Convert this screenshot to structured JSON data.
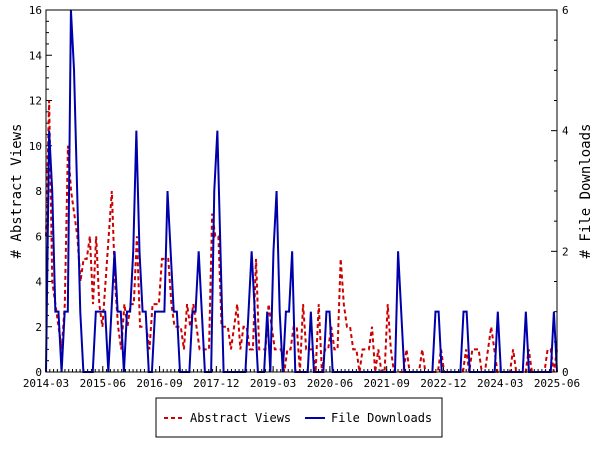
{
  "chart_data": {
    "type": "line",
    "x_tick_labels": [
      "2014-03",
      "2015-06",
      "2016-09",
      "2017-12",
      "2019-03",
      "2020-06",
      "2021-09",
      "2022-12",
      "2024-03",
      "2025-06"
    ],
    "x_range": [
      "2014-03",
      "2025-06"
    ],
    "ylabel": "# Abstract Views",
    "y2label": "# File Downloads",
    "ylim": [
      0,
      16
    ],
    "y_ticks": [
      0,
      2,
      4,
      6,
      8,
      10,
      12,
      14,
      16
    ],
    "y2lim": [
      0,
      6
    ],
    "y2_ticks": [
      0,
      2,
      4,
      6
    ],
    "legend_placement": "bottom-center",
    "series": [
      {
        "name": "Abstract Views",
        "axis": "left",
        "color": "#cc0000",
        "style": "dashed",
        "values": [
          6,
          12,
          4,
          3,
          2,
          1,
          3,
          10,
          8,
          7,
          6,
          4,
          5,
          5,
          6,
          3,
          6,
          3,
          2,
          4,
          6,
          8,
          4,
          2,
          1,
          3,
          2,
          3,
          3,
          6,
          2,
          2,
          2,
          1,
          3,
          3,
          3,
          5,
          5,
          5,
          3,
          2,
          2,
          2,
          1,
          3,
          2,
          3,
          2,
          1,
          1,
          1,
          1,
          7,
          6,
          6,
          2,
          2,
          2,
          1,
          2,
          3,
          1,
          2,
          2,
          1,
          1,
          5,
          1,
          1,
          1,
          3,
          2,
          1,
          1,
          1,
          0,
          1,
          1,
          2,
          2,
          0,
          3,
          1,
          1,
          1,
          0,
          3,
          0,
          1,
          1,
          2,
          1,
          1,
          5,
          3,
          2,
          2,
          1,
          1,
          0,
          1,
          1,
          1,
          2,
          0,
          1,
          0,
          0,
          3,
          1,
          0,
          0,
          0,
          0,
          1,
          0,
          0,
          0,
          0,
          1,
          0,
          0,
          0,
          0,
          0,
          1,
          0,
          0,
          0,
          0,
          0,
          0,
          0,
          1,
          0,
          1,
          1,
          1,
          0,
          0,
          1,
          2,
          1,
          0,
          0,
          0,
          0,
          0,
          1,
          0,
          0,
          0,
          0,
          1,
          0,
          0,
          0,
          0,
          0,
          1,
          1,
          0,
          1
        ],
        "ylim": [
          0,
          16
        ]
      },
      {
        "name": "File Downloads",
        "axis": "right",
        "color": "#0000aa",
        "style": "solid",
        "values": [
          0,
          4,
          3,
          1,
          1,
          0,
          1,
          1,
          6,
          5,
          3,
          1,
          0,
          0,
          0,
          0,
          1,
          1,
          1,
          1,
          0,
          1,
          2,
          1,
          1,
          0,
          1,
          1,
          2,
          4,
          2,
          1,
          1,
          0,
          0,
          1,
          1,
          1,
          1,
          3,
          2,
          1,
          1,
          0,
          0,
          0,
          0,
          1,
          1,
          2,
          1,
          0,
          0,
          0,
          3,
          4,
          2,
          0,
          0,
          0,
          0,
          0,
          0,
          0,
          0,
          1,
          2,
          1,
          0,
          0,
          0,
          1,
          0,
          2,
          3,
          1,
          0,
          1,
          1,
          2,
          0,
          0,
          0,
          0,
          0,
          1,
          0,
          0,
          0,
          0,
          1,
          1,
          0,
          0,
          0,
          0,
          0,
          0,
          0,
          0,
          0,
          0,
          0,
          0,
          0,
          0,
          0,
          0,
          0,
          0,
          0,
          0,
          0,
          2,
          1,
          0,
          0,
          0,
          0,
          0,
          0,
          0,
          0,
          0,
          0,
          1,
          1,
          0,
          0,
          0,
          0,
          0,
          0,
          0,
          1,
          1,
          0,
          0,
          0,
          0,
          0,
          0,
          0,
          0,
          0,
          1,
          0,
          0,
          0,
          0,
          0,
          0,
          0,
          0,
          1,
          0,
          0,
          0,
          0,
          0,
          0,
          0,
          0,
          1,
          0
        ],
        "ylim": [
          0,
          6
        ]
      }
    ]
  }
}
